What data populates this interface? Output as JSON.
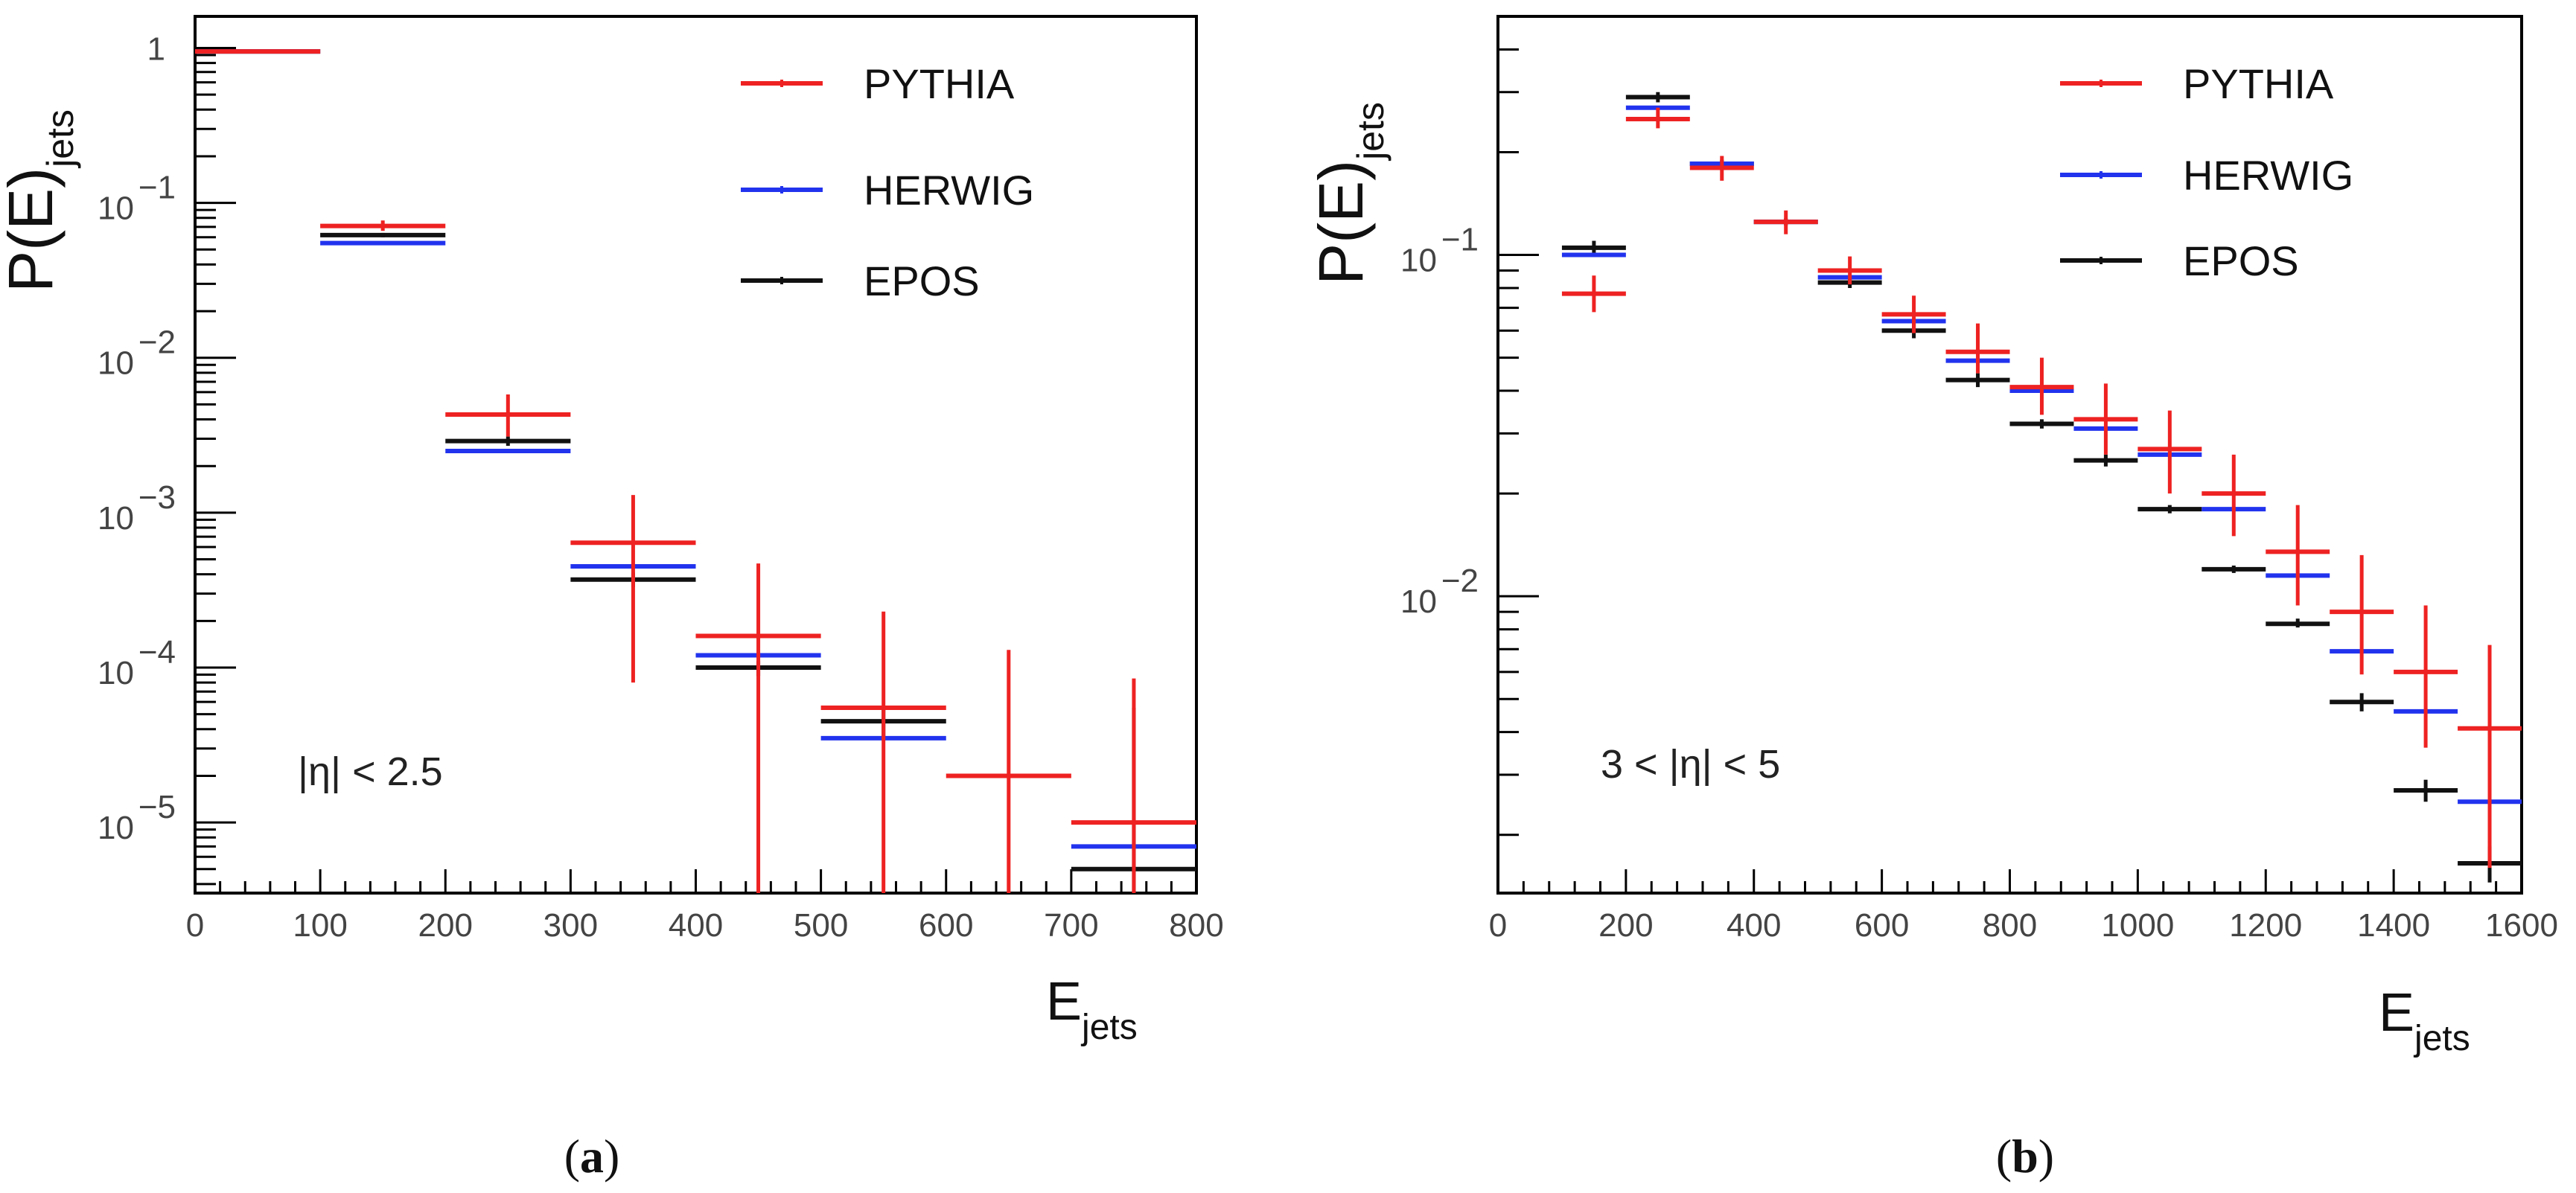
{
  "chart_data": [
    {
      "type": "histogram",
      "panel_label": "a",
      "ylabel_main": "P(E)",
      "ylabel_sub": "jets",
      "xlabel_main": "E",
      "xlabel_sub": "jets",
      "yscale": "log",
      "xlim": [
        0,
        800
      ],
      "ylim": [
        3.5e-06,
        1.6
      ],
      "x_ticks": [
        0,
        100,
        200,
        300,
        400,
        500,
        600,
        700,
        800
      ],
      "y_ticks": [
        {
          "value": 1,
          "base": "1",
          "exp": ""
        },
        {
          "value": 0.1,
          "base": "10",
          "exp": "−1"
        },
        {
          "value": 0.01,
          "base": "10",
          "exp": "−2"
        },
        {
          "value": 0.001,
          "base": "10",
          "exp": "−3"
        },
        {
          "value": 0.0001,
          "base": "10",
          "exp": "−4"
        },
        {
          "value": 1e-05,
          "base": "10",
          "exp": "−5"
        }
      ],
      "annotation": "|η| < 2.5",
      "legend": [
        "PYTHIA",
        "HERWIG",
        "EPOS"
      ],
      "series": [
        {
          "name": "PYTHIA",
          "color": "#ee2222",
          "bins": [
            [
              0,
              100,
              0.95
            ],
            [
              100,
              200,
              0.071
            ],
            [
              200,
              300,
              0.0043
            ],
            [
              300,
              400,
              0.00064
            ],
            [
              400,
              500,
              0.00016
            ],
            [
              500,
              600,
              5.5e-05
            ],
            [
              600,
              700,
              2e-05
            ],
            [
              700,
              800,
              1e-05
            ]
          ],
          "err_low": [
            0.93,
            0.066,
            0.0031,
            8e-05,
            3.5e-06,
            3.5e-06,
            3.5e-06,
            3.5e-06
          ],
          "err_high": [
            0.97,
            0.077,
            0.0058,
            0.0013,
            0.00047,
            0.00023,
            0.00013,
            8.5e-05
          ]
        },
        {
          "name": "HERWIG",
          "color": "#2233ee",
          "bins": [
            [
              0,
              100,
              0.95
            ],
            [
              100,
              200,
              0.055
            ],
            [
              200,
              300,
              0.0025
            ],
            [
              300,
              400,
              0.00045
            ],
            [
              400,
              500,
              0.00012
            ],
            [
              500,
              600,
              3.5e-05
            ],
            [
              700,
              800,
              7e-06
            ]
          ],
          "err_low": [
            0.95,
            0.055,
            0.0025,
            0.00045,
            0.00012,
            3.5e-05,
            7e-06
          ],
          "err_high": [
            0.95,
            0.055,
            0.0025,
            0.00045,
            0.00012,
            3.5e-05,
            7e-06
          ]
        },
        {
          "name": "EPOS",
          "color": "#111111",
          "bins": [
            [
              0,
              100,
              0.95
            ],
            [
              100,
              200,
              0.062
            ],
            [
              200,
              300,
              0.0029
            ],
            [
              300,
              400,
              0.00037
            ],
            [
              400,
              500,
              0.0001
            ],
            [
              500,
              600,
              4.5e-05
            ],
            [
              700,
              800,
              5e-06
            ]
          ],
          "err_low": [
            0.94,
            0.06,
            0.0027,
            0.00033,
            8.8e-05,
            3.6e-05,
            3.5e-06
          ],
          "err_high": [
            0.96,
            0.064,
            0.0031,
            0.00041,
            0.00011,
            5.4e-05,
            5.5e-05
          ]
        }
      ]
    },
    {
      "type": "histogram",
      "panel_label": "b",
      "ylabel_main": "P(E)",
      "ylabel_sub": "jets",
      "xlabel_main": "E",
      "xlabel_sub": "jets",
      "yscale": "log",
      "xlim": [
        0,
        1600
      ],
      "ylim": [
        0.00135,
        0.5
      ],
      "x_ticks": [
        0,
        200,
        400,
        600,
        800,
        1000,
        1200,
        1400,
        1600
      ],
      "y_ticks": [
        {
          "value": 0.1,
          "base": "10",
          "exp": "−1"
        },
        {
          "value": 0.01,
          "base": "10",
          "exp": "−2"
        }
      ],
      "annotation": "3 < |η| < 5",
      "legend": [
        "PYTHIA",
        "HERWIG",
        "EPOS"
      ],
      "series": [
        {
          "name": "PYTHIA",
          "color": "#ee2222",
          "bins": [
            [
              100,
              200,
              0.077
            ],
            [
              200,
              300,
              0.25
            ],
            [
              300,
              400,
              0.18
            ],
            [
              400,
              500,
              0.125
            ],
            [
              500,
              600,
              0.09
            ],
            [
              600,
              700,
              0.067
            ],
            [
              700,
              800,
              0.052
            ],
            [
              800,
              900,
              0.041
            ],
            [
              900,
              1000,
              0.033
            ],
            [
              1000,
              1100,
              0.027
            ],
            [
              1100,
              1200,
              0.02
            ],
            [
              1200,
              1300,
              0.0135
            ],
            [
              1300,
              1400,
              0.009
            ],
            [
              1400,
              1500,
              0.006
            ],
            [
              1500,
              1600,
              0.0041
            ]
          ],
          "err_low": [
            0.068,
            0.235,
            0.165,
            0.115,
            0.082,
            0.059,
            0.045,
            0.034,
            0.026,
            0.02,
            0.015,
            0.0094,
            0.0059,
            0.0036,
            0.0016
          ],
          "err_high": [
            0.087,
            0.27,
            0.195,
            0.135,
            0.099,
            0.076,
            0.063,
            0.05,
            0.042,
            0.035,
            0.026,
            0.0185,
            0.0132,
            0.0094,
            0.0072
          ]
        },
        {
          "name": "HERWIG",
          "color": "#2233ee",
          "bins": [
            [
              100,
              200,
              0.1
            ],
            [
              200,
              300,
              0.27
            ],
            [
              300,
              400,
              0.185
            ],
            [
              400,
              500,
              0.125
            ],
            [
              500,
              600,
              0.086
            ],
            [
              600,
              700,
              0.064
            ],
            [
              700,
              800,
              0.049
            ],
            [
              800,
              900,
              0.04
            ],
            [
              900,
              1000,
              0.031
            ],
            [
              1000,
              1100,
              0.026
            ],
            [
              1100,
              1200,
              0.018
            ],
            [
              1200,
              1300,
              0.0115
            ],
            [
              1300,
              1400,
              0.0069
            ],
            [
              1400,
              1500,
              0.0046
            ],
            [
              1500,
              1600,
              0.0025
            ]
          ],
          "err_low": [
            0.1,
            0.27,
            0.185,
            0.125,
            0.086,
            0.064,
            0.049,
            0.04,
            0.031,
            0.026,
            0.018,
            0.0115,
            0.0069,
            0.0046,
            0.0025
          ],
          "err_high": [
            0.1,
            0.27,
            0.185,
            0.125,
            0.086,
            0.064,
            0.049,
            0.04,
            0.031,
            0.026,
            0.018,
            0.0115,
            0.0069,
            0.0046,
            0.0025
          ]
        },
        {
          "name": "EPOS",
          "color": "#111111",
          "bins": [
            [
              100,
              200,
              0.105
            ],
            [
              200,
              300,
              0.29
            ],
            [
              300,
              400,
              0.185
            ],
            [
              400,
              500,
              0.125
            ],
            [
              500,
              600,
              0.083
            ],
            [
              600,
              700,
              0.06
            ],
            [
              700,
              800,
              0.043
            ],
            [
              800,
              900,
              0.032
            ],
            [
              900,
              1000,
              0.025
            ],
            [
              1000,
              1100,
              0.018
            ],
            [
              1100,
              1200,
              0.012
            ],
            [
              1200,
              1300,
              0.0083
            ],
            [
              1300,
              1400,
              0.0049
            ],
            [
              1400,
              1500,
              0.0027
            ],
            [
              1500,
              1600,
              0.00165
            ]
          ],
          "err_low": [
            0.1,
            0.28,
            0.18,
            0.122,
            0.08,
            0.057,
            0.041,
            0.031,
            0.024,
            0.0175,
            0.0117,
            0.0081,
            0.0046,
            0.0025,
            0.00145
          ],
          "err_high": [
            0.11,
            0.3,
            0.19,
            0.128,
            0.086,
            0.063,
            0.045,
            0.033,
            0.026,
            0.0185,
            0.0123,
            0.0086,
            0.0052,
            0.0029,
            0.00185
          ]
        }
      ]
    }
  ]
}
